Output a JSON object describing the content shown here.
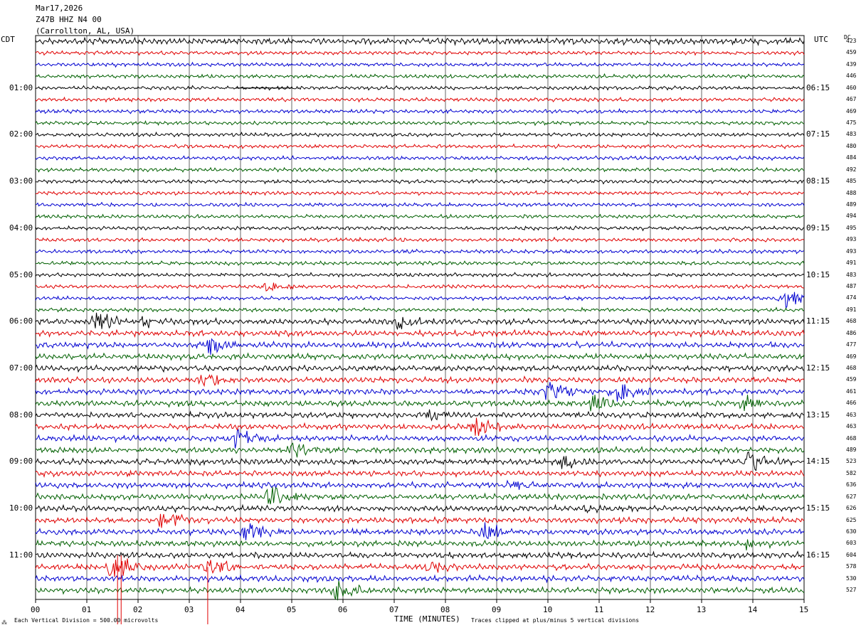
{
  "header": {
    "date": "Mar17,2026",
    "station": "Z47B HHZ N4 00",
    "location": "(Carrollton, AL, USA)"
  },
  "left_tz": "CDT",
  "right_tz": "UTC",
  "dc_label": "DC",
  "footer": {
    "scale": "Each Vertical Division = 500.00 microvolts",
    "clip": "Traces clipped at plus/minus 5 vertical divisions"
  },
  "chart_data": {
    "type": "line",
    "xlabel": "TIME (MINUTES)",
    "xlim": [
      0,
      15
    ],
    "x_ticks": [
      "00",
      "01",
      "02",
      "03",
      "04",
      "05",
      "06",
      "07",
      "08",
      "09",
      "10",
      "11",
      "12",
      "13",
      "14",
      "15"
    ],
    "trace_colors": [
      "#000000",
      "#e00000",
      "#0000d0",
      "#006000"
    ],
    "trace_count": 48,
    "left_time_labels": [
      {
        "row": 4,
        "label": "01:00"
      },
      {
        "row": 8,
        "label": "02:00"
      },
      {
        "row": 12,
        "label": "03:00"
      },
      {
        "row": 16,
        "label": "04:00"
      },
      {
        "row": 20,
        "label": "05:00"
      },
      {
        "row": 24,
        "label": "06:00"
      },
      {
        "row": 28,
        "label": "07:00"
      },
      {
        "row": 32,
        "label": "08:00"
      },
      {
        "row": 36,
        "label": "09:00"
      },
      {
        "row": 40,
        "label": "10:00"
      },
      {
        "row": 44,
        "label": "11:00"
      }
    ],
    "right_time_labels": [
      {
        "row": 4,
        "label": "06:15"
      },
      {
        "row": 8,
        "label": "07:15"
      },
      {
        "row": 12,
        "label": "08:15"
      },
      {
        "row": 16,
        "label": "09:15"
      },
      {
        "row": 20,
        "label": "10:15"
      },
      {
        "row": 24,
        "label": "11:15"
      },
      {
        "row": 28,
        "label": "12:15"
      },
      {
        "row": 32,
        "label": "13:15"
      },
      {
        "row": 36,
        "label": "14:15"
      },
      {
        "row": 40,
        "label": "15:15"
      },
      {
        "row": 44,
        "label": "16:15"
      }
    ],
    "dc_offsets": [
      "423",
      "459",
      "439",
      "446",
      "460",
      "467",
      "469",
      "475",
      "483",
      "480",
      "484",
      "492",
      "485",
      "488",
      "489",
      "494",
      "495",
      "493",
      "493",
      "491",
      "483",
      "487",
      "474",
      "491",
      "468",
      "486",
      "477",
      "469",
      "468",
      "459",
      "461",
      "466",
      "463",
      "463",
      "468",
      "489",
      "523",
      "582",
      "636",
      "627",
      "626",
      "625",
      "630",
      "603",
      "604",
      "578",
      "530",
      "527"
    ],
    "bursts": [
      {
        "row": 21,
        "minute": 4.5,
        "amp": 1.2
      },
      {
        "row": 22,
        "minute": 14.6,
        "amp": 2.2
      },
      {
        "row": 24,
        "minute": 1.2,
        "amp": 2.2
      },
      {
        "row": 24,
        "minute": 2.15,
        "amp": 1.0
      },
      {
        "row": 24,
        "minute": 7.1,
        "amp": 1.5
      },
      {
        "row": 26,
        "minute": 3.4,
        "amp": 1.8
      },
      {
        "row": 29,
        "minute": 3.3,
        "amp": 1.5
      },
      {
        "row": 30,
        "minute": 10.0,
        "amp": 2.4
      },
      {
        "row": 30,
        "minute": 11.3,
        "amp": 2.4
      },
      {
        "row": 31,
        "minute": 10.9,
        "amp": 1.8
      },
      {
        "row": 31,
        "minute": 13.85,
        "amp": 1.8
      },
      {
        "row": 32,
        "minute": 7.7,
        "amp": 1.2
      },
      {
        "row": 33,
        "minute": 8.6,
        "amp": 2.5
      },
      {
        "row": 34,
        "minute": 3.9,
        "amp": 2.5
      },
      {
        "row": 35,
        "minute": 5.0,
        "amp": 1.8
      },
      {
        "row": 36,
        "minute": 10.3,
        "amp": 1.5
      },
      {
        "row": 36,
        "minute": 13.9,
        "amp": 2.5
      },
      {
        "row": 38,
        "minute": 9.3,
        "amp": 1.1
      },
      {
        "row": 39,
        "minute": 4.6,
        "amp": 2.6
      },
      {
        "row": 40,
        "minute": 10.6,
        "amp": 1.0
      },
      {
        "row": 41,
        "minute": 2.5,
        "amp": 2.5
      },
      {
        "row": 42,
        "minute": 4.1,
        "amp": 2.5
      },
      {
        "row": 42,
        "minute": 8.75,
        "amp": 2.0
      },
      {
        "row": 43,
        "minute": 13.9,
        "amp": 1.2
      },
      {
        "row": 45,
        "minute": 1.5,
        "amp": 3.0
      },
      {
        "row": 45,
        "minute": 3.4,
        "amp": 2.2
      },
      {
        "row": 45,
        "minute": 7.7,
        "amp": 1.2
      },
      {
        "row": 47,
        "minute": 5.9,
        "amp": 2.8
      }
    ]
  }
}
